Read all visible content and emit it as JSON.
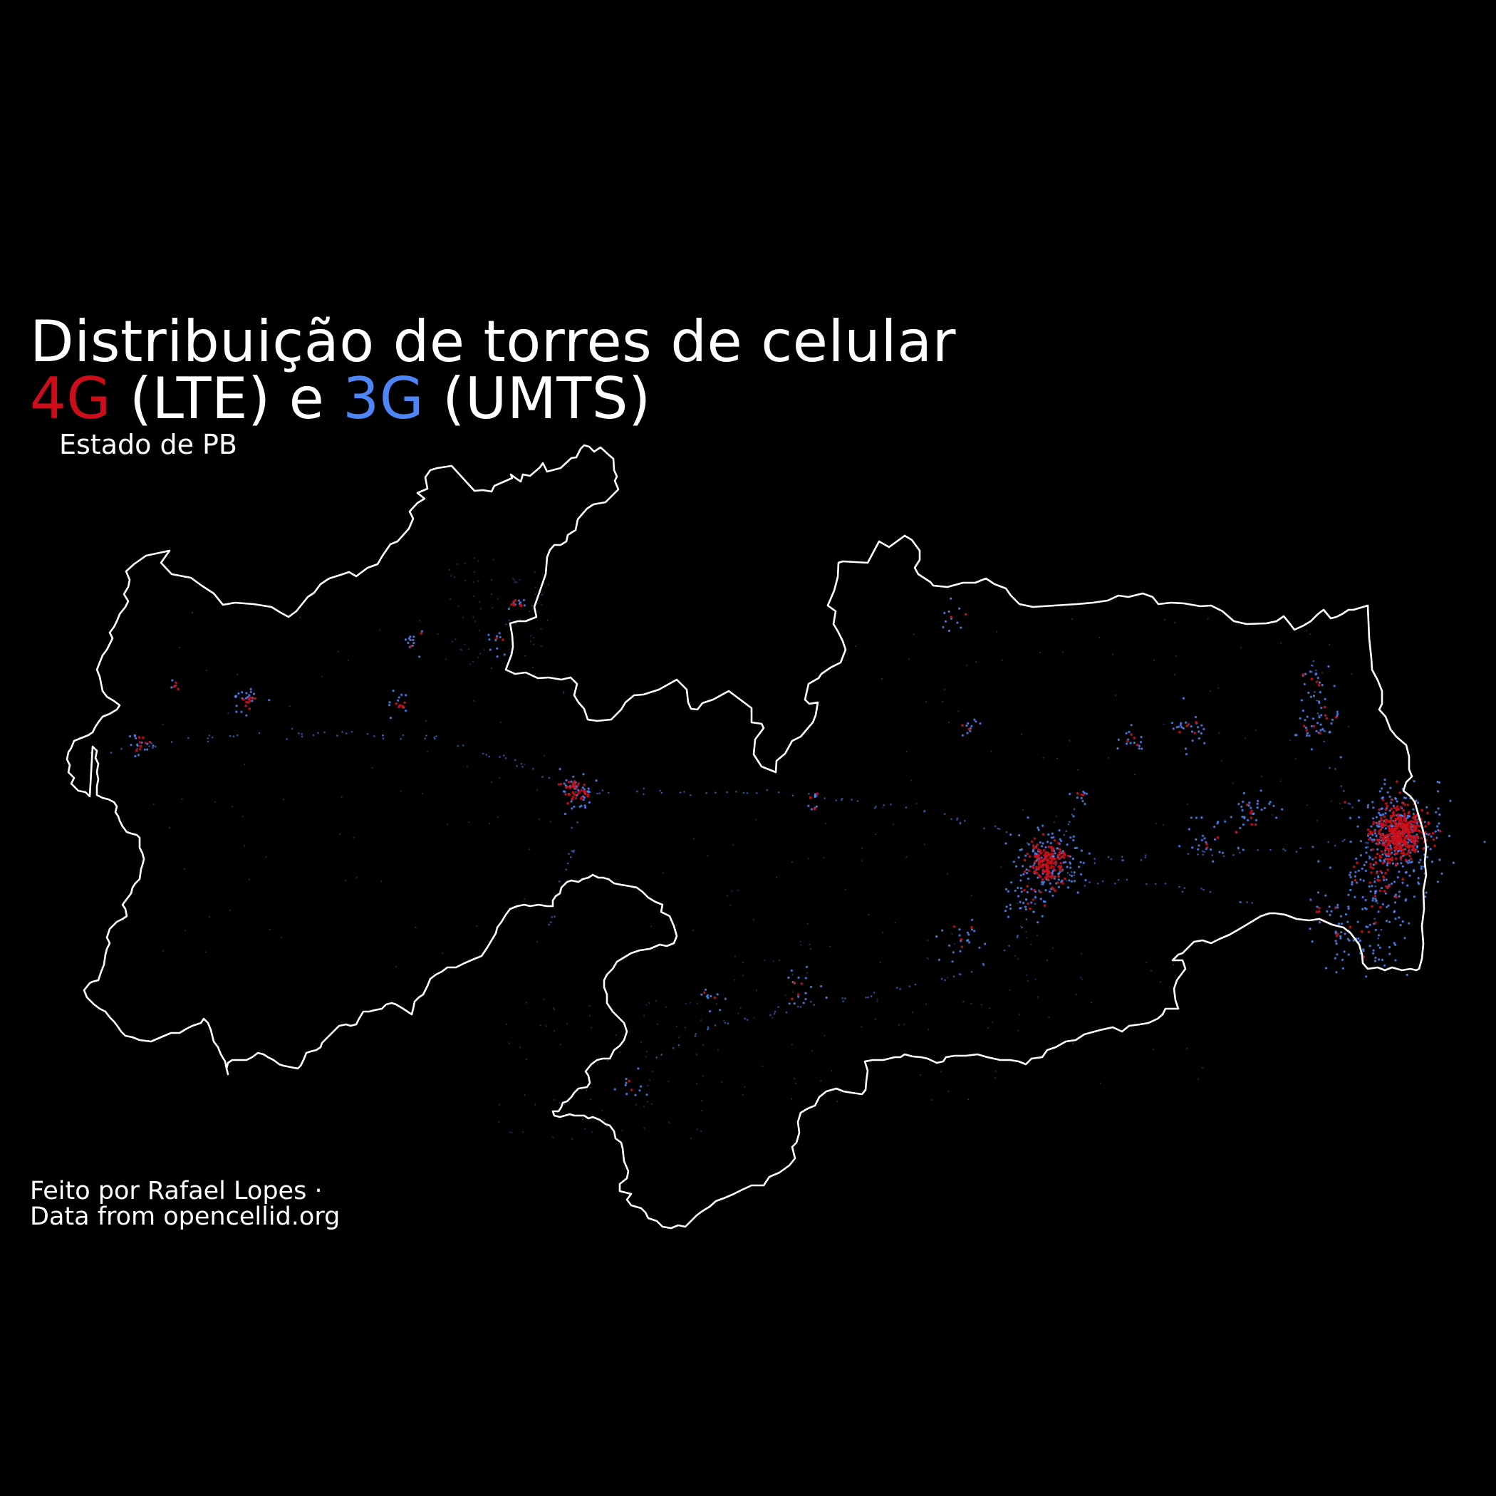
{
  "title": {
    "line1": "Distribuição de torres de celular",
    "line2": {
      "part_4g": "4G",
      "part_lte": " (LTE) e ",
      "part_3g": "3G",
      "part_umts": " (UMTS)"
    }
  },
  "subtitle": "Estado de PB",
  "caption": {
    "line1": "Feito por Rafael Lopes ·",
    "line2": "Data from opencellid.org"
  },
  "colors": {
    "background": "#000000",
    "border": "#ffffff",
    "lte_4g": "#cc0e1a",
    "umts_3g": "#4f86f7"
  },
  "legend": [
    {
      "name": "4G",
      "color": "#cc0e1a"
    },
    {
      "name": "3G",
      "color": "#4f86f7"
    }
  ]
}
